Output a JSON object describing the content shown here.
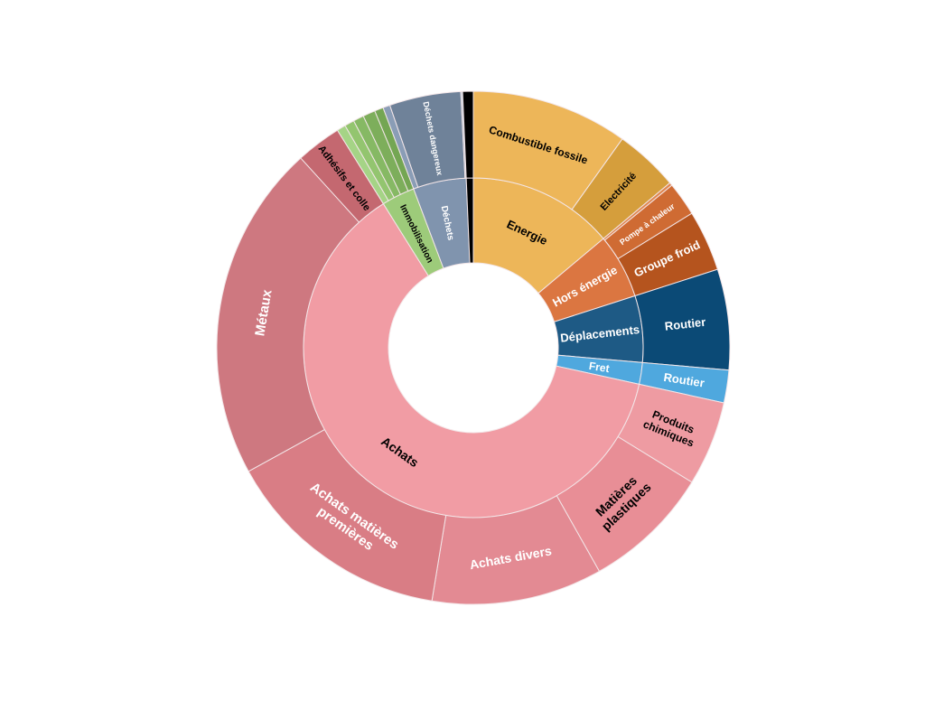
{
  "chart_data": {
    "type": "sunburst",
    "title": "",
    "value_unit": "degrees of 360 (relative share)",
    "segments": [
      {
        "label": "Energie",
        "color": "#EDB659",
        "text_color": "#000000",
        "children": [
          {
            "label": "Combustible fossile",
            "value": 35.5,
            "color": "#EDB659",
            "text_color": "#000000"
          },
          {
            "label": "Electricité",
            "value": 14.5,
            "color": "#D59E3C",
            "text_color": "#000000"
          }
        ]
      },
      {
        "label": "Hors énergie",
        "color": "#DB7641",
        "text_color": "#FFFFFF",
        "children": [
          {
            "label": "",
            "value": 0.7,
            "color": "#E0874F",
            "text_color": "#FFFFFF"
          },
          {
            "label": "Pompe à chaleur",
            "value": 7.7,
            "color": "#CF6B33",
            "text_color": "#FFFFFF"
          },
          {
            "label": "Groupe froid",
            "value": 13.8,
            "color": "#B5541E",
            "text_color": "#FFFFFF"
          }
        ]
      },
      {
        "label": "Déplacements",
        "color": "#1E5A85",
        "text_color": "#FFFFFF",
        "children": [
          {
            "label": "Routier",
            "value": 22.8,
            "color": "#0B4A76",
            "text_color": "#FFFFFF"
          }
        ]
      },
      {
        "label": "Fret",
        "color": "#4FA8DE",
        "text_color": "#FFFFFF",
        "children": [
          {
            "label": "Routier",
            "value": 7.4,
            "color": "#4FA8DE",
            "text_color": "#FFFFFF"
          }
        ]
      },
      {
        "label": "Achats",
        "color": "#F19CA4",
        "text_color": "#000000",
        "children": [
          {
            "label": "Produits\nchimiques",
            "value": 19.2,
            "color": "#EE9BA2",
            "text_color": "#000000"
          },
          {
            "label": "Matières\nplastiques",
            "value": 29.0,
            "color": "#E88E96",
            "text_color": "#000000"
          },
          {
            "label": "Achats divers",
            "value": 38.7,
            "color": "#E38A93",
            "text_color": "#FFFFFF"
          },
          {
            "label": "Achats matières\npremières",
            "value": 51.9,
            "color": "#D97D85",
            "text_color": "#FFFFFF"
          },
          {
            "label": "Métaux",
            "value": 76.5,
            "color": "#CE7880",
            "text_color": "#FFFFFF"
          },
          {
            "label": "Adhésifs et colle",
            "value": 10.3,
            "color": "#C46870",
            "text_color": "#000000"
          }
        ]
      },
      {
        "label": "Immobilisation",
        "color": "#9DCB7A",
        "text_color": "#000000",
        "children": [
          {
            "label": "",
            "value": 2.0,
            "color": "#A5D486",
            "text_color": "#000000"
          },
          {
            "label": "",
            "value": 2.2,
            "color": "#93C56F",
            "text_color": "#000000"
          },
          {
            "label": "",
            "value": 2.4,
            "color": "#86B964",
            "text_color": "#000000"
          },
          {
            "label": "",
            "value": 2.8,
            "color": "#7DAE5B",
            "text_color": "#000000"
          },
          {
            "label": "",
            "value": 2.0,
            "color": "#74A653",
            "text_color": "#000000"
          }
        ]
      },
      {
        "label": "Déchets",
        "color": "#8094AE",
        "text_color": "#FFFFFF",
        "children": [
          {
            "label": "",
            "value": 1.6,
            "color": "#8A9DB6",
            "text_color": "#FFFFFF"
          },
          {
            "label": "Déchets dangereux",
            "value": 16.2,
            "color": "#6F8299",
            "text_color": "#FFFFFF"
          },
          {
            "label": "",
            "value": 0.4,
            "color": "#B5C2D2",
            "text_color": "#FFFFFF"
          }
        ]
      },
      {
        "label": "",
        "color": "#000000",
        "text_color": "#FFFFFF",
        "children": [
          {
            "label": "",
            "value": 2.4,
            "color": "#000000",
            "text_color": "#FFFFFF"
          }
        ]
      }
    ]
  }
}
